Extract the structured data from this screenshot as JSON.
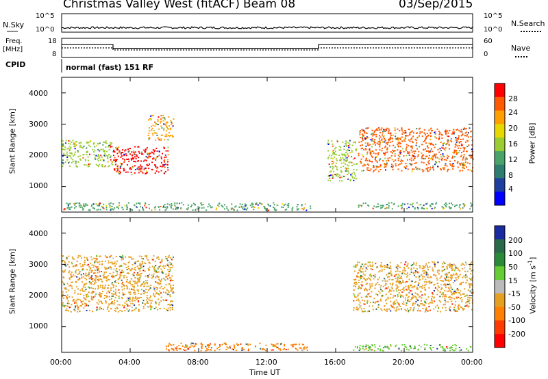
{
  "header": {
    "station": "Christmas Valley West (fitACF)",
    "beam": "Beam 08",
    "date": "03/Sep/2015"
  },
  "top_panels": {
    "nsky_label": "N.Sky",
    "nsky_ticks": [
      "10^5",
      "10^0"
    ],
    "nsearch_label": "N.Search",
    "nsearch_ticks": [
      "10^5",
      "10^0"
    ],
    "freq_label": "Freq.",
    "freq_unit": "[MHz]",
    "freq_ticks": [
      "18",
      "8"
    ],
    "nave_label": "Nave",
    "nave_ticks": [
      "60",
      "0"
    ],
    "cpid_label": "CPID",
    "cpid_value": "normal (fast) 151 RF"
  },
  "power_colorbar": {
    "label": "Power [dB]",
    "ticks": [
      "28",
      "24",
      "20",
      "16",
      "12",
      "8",
      "4"
    ],
    "colors": [
      "#ff0000",
      "#ff5a00",
      "#ffa000",
      "#e6d800",
      "#9acd32",
      "#4aa36a",
      "#2e7d6e",
      "#1f3fa0",
      "#0000ff"
    ]
  },
  "velocity_colorbar": {
    "label_main": "Velocity [m s",
    "label_sup": "-1",
    "label_end": "]",
    "ticks": [
      "200",
      "100",
      "50",
      "15",
      "-15",
      "-50",
      "-100",
      "-200"
    ],
    "colors": [
      "#1a2aa0",
      "#2a6a4a",
      "#2a8a3a",
      "#66cc33",
      "#bbbbbb",
      "#e6a020",
      "#ff8000",
      "#ff3a00",
      "#ff0000"
    ]
  },
  "axes": {
    "ylabel": "Slant Range [km]",
    "yticks": [
      "4000",
      "3000",
      "2000",
      "1000"
    ],
    "xlabel": "Time UT",
    "xticks": [
      "00:00",
      "04:00",
      "08:00",
      "12:00",
      "16:00",
      "20:00",
      "00:00"
    ]
  },
  "chart_data": {
    "type": "heatmap",
    "x_axis": {
      "label": "Time UT",
      "range": [
        "00:00",
        "24:00"
      ],
      "ticks": [
        "00:00",
        "04:00",
        "08:00",
        "12:00",
        "16:00",
        "20:00",
        "00:00"
      ]
    },
    "y_axis": {
      "label": "Slant Range [km]",
      "range": [
        180,
        4500
      ],
      "ticks": [
        1000,
        2000,
        3000,
        4000
      ]
    },
    "frequency_MHz": [
      {
        "from": 0,
        "to": 3,
        "value": 14
      },
      {
        "from": 3,
        "to": 15,
        "value": 11
      },
      {
        "from": 15,
        "to": 24,
        "value": 14
      }
    ],
    "nave": [
      {
        "from": 0,
        "to": 3,
        "value": 20
      },
      {
        "from": 3,
        "to": 15,
        "value": 10
      },
      {
        "from": 15,
        "to": 24,
        "value": 20
      }
    ],
    "power_regions": [
      {
        "t0": 0.0,
        "t1": 3.0,
        "r0": 1650,
        "r1": 2500,
        "level": "12"
      },
      {
        "t0": 3.0,
        "t1": 6.2,
        "r0": 1400,
        "r1": 2300,
        "level": "28"
      },
      {
        "t0": 5.0,
        "t1": 6.5,
        "r0": 2500,
        "r1": 3300,
        "level": "20"
      },
      {
        "t0": 0.0,
        "t1": 14.5,
        "r0": 250,
        "r1": 500,
        "level": "8"
      },
      {
        "t0": 15.5,
        "t1": 17.2,
        "r0": 1200,
        "r1": 2500,
        "level": "12"
      },
      {
        "t0": 17.3,
        "t1": 24.0,
        "r0": 1500,
        "r1": 2900,
        "level": "24"
      },
      {
        "t0": 17.3,
        "t1": 24.0,
        "r0": 300,
        "r1": 500,
        "level": "8"
      }
    ],
    "velocity_regions": [
      {
        "t0": 0.0,
        "t1": 6.5,
        "r0": 1500,
        "r1": 3300,
        "level": "-15"
      },
      {
        "t0": 6.0,
        "t1": 14.5,
        "r0": 250,
        "r1": 500,
        "level": "-50"
      },
      {
        "t0": 17.0,
        "t1": 24.0,
        "r0": 1500,
        "r1": 3100,
        "level": "-15"
      },
      {
        "t0": 17.0,
        "t1": 24.0,
        "r0": 250,
        "r1": 450,
        "level": "50"
      }
    ]
  }
}
